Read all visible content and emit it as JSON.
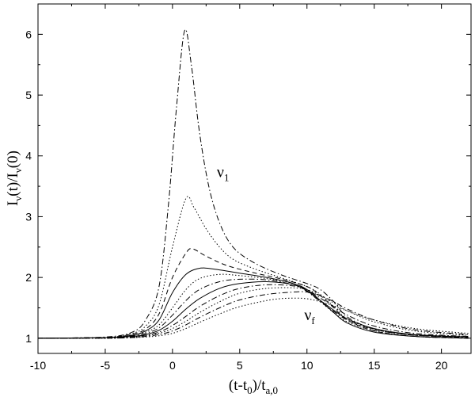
{
  "chart_data": {
    "type": "line",
    "title": "",
    "xlabel": {
      "base": "(t-t",
      "sub1": "0",
      "mid": ")/t",
      "sub2": "a,0"
    },
    "ylabel": {
      "p1": "I",
      "s1": "ν",
      "p2": "(t)/I",
      "s2": "ν",
      "p3": "(0)"
    },
    "xlim": [
      -10,
      22.2
    ],
    "ylim": [
      0.75,
      6.5
    ],
    "xticks": [
      -10,
      -5,
      0,
      5,
      10,
      15,
      20
    ],
    "yticks": [
      1,
      2,
      3,
      4,
      5,
      6
    ],
    "grid": false,
    "legend": "none",
    "annotations": [
      {
        "id": "nu-1",
        "base": "ν",
        "sub": "1",
        "x": 3.3,
        "y": 3.65
      },
      {
        "id": "nu-f",
        "base": "ν",
        "sub": "f",
        "x": 9.8,
        "y": 1.3
      }
    ],
    "series": [
      {
        "style": "dashdot",
        "values": [
          [
            -10,
            1
          ],
          [
            -5,
            1.02
          ],
          [
            -3,
            1.1
          ],
          [
            -2,
            1.3
          ],
          [
            -1,
            1.85
          ],
          [
            -0.3,
            3.2
          ],
          [
            0.3,
            4.8
          ],
          [
            0.9,
            6.06
          ],
          [
            1.4,
            5.5
          ],
          [
            2,
            4.4
          ],
          [
            2.7,
            3.5
          ],
          [
            3.5,
            2.9
          ],
          [
            4.5,
            2.5
          ],
          [
            6,
            2.25
          ],
          [
            8,
            2.05
          ],
          [
            10,
            1.9
          ],
          [
            11,
            1.8
          ],
          [
            12,
            1.6
          ],
          [
            13,
            1.35
          ],
          [
            15,
            1.15
          ],
          [
            18,
            1.05
          ],
          [
            22,
            1.02
          ]
        ]
      },
      {
        "style": "dotted",
        "values": [
          [
            -10,
            1
          ],
          [
            -5,
            1.01
          ],
          [
            -3,
            1.08
          ],
          [
            -2,
            1.2
          ],
          [
            -1,
            1.55
          ],
          [
            0,
            2.5
          ],
          [
            1,
            3.3
          ],
          [
            1.6,
            3.15
          ],
          [
            2.5,
            2.8
          ],
          [
            3.5,
            2.5
          ],
          [
            4.5,
            2.3
          ],
          [
            6,
            2.15
          ],
          [
            8,
            2.0
          ],
          [
            10,
            1.85
          ],
          [
            11,
            1.72
          ],
          [
            12,
            1.52
          ],
          [
            13,
            1.32
          ],
          [
            15,
            1.15
          ],
          [
            18,
            1.06
          ],
          [
            22,
            1.03
          ]
        ]
      },
      {
        "style": "dashed",
        "values": [
          [
            -10,
            1
          ],
          [
            -5,
            1.01
          ],
          [
            -3,
            1.07
          ],
          [
            -2,
            1.15
          ],
          [
            -1,
            1.4
          ],
          [
            0,
            2.0
          ],
          [
            1,
            2.4
          ],
          [
            1.5,
            2.47
          ],
          [
            2.5,
            2.35
          ],
          [
            4,
            2.2
          ],
          [
            6,
            2.08
          ],
          [
            8,
            1.98
          ],
          [
            10,
            1.85
          ],
          [
            11,
            1.7
          ],
          [
            12,
            1.5
          ],
          [
            13,
            1.3
          ],
          [
            15,
            1.12
          ],
          [
            18,
            1.03
          ],
          [
            22,
            1.0
          ]
        ]
      },
      {
        "style": "solid",
        "values": [
          [
            -10,
            1
          ],
          [
            -5,
            1.01
          ],
          [
            -3,
            1.05
          ],
          [
            -2,
            1.12
          ],
          [
            -1,
            1.3
          ],
          [
            0,
            1.75
          ],
          [
            1,
            2.05
          ],
          [
            2,
            2.15
          ],
          [
            3,
            2.14
          ],
          [
            5,
            2.07
          ],
          [
            7,
            2.0
          ],
          [
            9,
            1.9
          ],
          [
            10,
            1.8
          ],
          [
            11,
            1.62
          ],
          [
            12,
            1.42
          ],
          [
            13,
            1.25
          ],
          [
            15,
            1.1
          ],
          [
            18,
            1.03
          ],
          [
            22,
            1.0
          ]
        ]
      },
      {
        "style": "dotted",
        "values": [
          [
            -10,
            1
          ],
          [
            -5,
            1.01
          ],
          [
            -3,
            1.05
          ],
          [
            -2,
            1.1
          ],
          [
            -1,
            1.22
          ],
          [
            0,
            1.5
          ],
          [
            1,
            1.8
          ],
          [
            2,
            1.98
          ],
          [
            3.5,
            2.05
          ],
          [
            5,
            2.03
          ],
          [
            7,
            1.98
          ],
          [
            9,
            1.9
          ],
          [
            10,
            1.78
          ],
          [
            11,
            1.6
          ],
          [
            12,
            1.42
          ],
          [
            13,
            1.27
          ],
          [
            15,
            1.12
          ],
          [
            18,
            1.03
          ],
          [
            22,
            1.0
          ]
        ]
      },
      {
        "style": "dashdot",
        "values": [
          [
            -10,
            1
          ],
          [
            -5,
            1.01
          ],
          [
            -3,
            1.04
          ],
          [
            -2,
            1.08
          ],
          [
            -1,
            1.17
          ],
          [
            0,
            1.38
          ],
          [
            1,
            1.62
          ],
          [
            2,
            1.8
          ],
          [
            3.5,
            1.93
          ],
          [
            5,
            1.97
          ],
          [
            7,
            1.96
          ],
          [
            9,
            1.88
          ],
          [
            10,
            1.77
          ],
          [
            11,
            1.6
          ],
          [
            12,
            1.44
          ],
          [
            13,
            1.3
          ],
          [
            15,
            1.14
          ],
          [
            18,
            1.05
          ],
          [
            22,
            1.01
          ]
        ]
      },
      {
        "style": "solid",
        "values": [
          [
            -10,
            1
          ],
          [
            -5,
            1.01
          ],
          [
            -3,
            1.03
          ],
          [
            -2,
            1.06
          ],
          [
            -1,
            1.13
          ],
          [
            0,
            1.28
          ],
          [
            1,
            1.48
          ],
          [
            2,
            1.65
          ],
          [
            3.5,
            1.82
          ],
          [
            5,
            1.9
          ],
          [
            7,
            1.93
          ],
          [
            9,
            1.88
          ],
          [
            10,
            1.78
          ],
          [
            11,
            1.62
          ],
          [
            12,
            1.46
          ],
          [
            13,
            1.32
          ],
          [
            15,
            1.16
          ],
          [
            18,
            1.06
          ],
          [
            22,
            1.02
          ]
        ]
      },
      {
        "style": "dashdot",
        "values": [
          [
            -10,
            1
          ],
          [
            -5,
            1.01
          ],
          [
            -3,
            1.02
          ],
          [
            -2,
            1.05
          ],
          [
            -1,
            1.1
          ],
          [
            0,
            1.21
          ],
          [
            1,
            1.36
          ],
          [
            2,
            1.52
          ],
          [
            3.5,
            1.7
          ],
          [
            5,
            1.82
          ],
          [
            7,
            1.88
          ],
          [
            9,
            1.86
          ],
          [
            10,
            1.8
          ],
          [
            11,
            1.66
          ],
          [
            12,
            1.52
          ],
          [
            13,
            1.38
          ],
          [
            15,
            1.2
          ],
          [
            18,
            1.08
          ],
          [
            22,
            1.03
          ]
        ]
      },
      {
        "style": "dotted",
        "values": [
          [
            -10,
            1
          ],
          [
            -5,
            1.0
          ],
          [
            -3,
            1.02
          ],
          [
            -2,
            1.04
          ],
          [
            -1,
            1.08
          ],
          [
            0,
            1.16
          ],
          [
            1,
            1.28
          ],
          [
            2,
            1.42
          ],
          [
            3.5,
            1.6
          ],
          [
            5,
            1.74
          ],
          [
            7,
            1.82
          ],
          [
            9,
            1.83
          ],
          [
            10,
            1.8
          ],
          [
            11,
            1.7
          ],
          [
            12,
            1.58
          ],
          [
            13,
            1.45
          ],
          [
            15,
            1.27
          ],
          [
            18,
            1.12
          ],
          [
            22,
            1.05
          ]
        ]
      },
      {
        "style": "dashdot",
        "values": [
          [
            -10,
            1
          ],
          [
            -5,
            1.0
          ],
          [
            -3,
            1.01
          ],
          [
            -2,
            1.03
          ],
          [
            -1,
            1.06
          ],
          [
            0,
            1.12
          ],
          [
            1,
            1.22
          ],
          [
            2,
            1.34
          ],
          [
            3.5,
            1.5
          ],
          [
            5,
            1.63
          ],
          [
            7,
            1.72
          ],
          [
            9,
            1.76
          ],
          [
            10,
            1.76
          ],
          [
            11,
            1.7
          ],
          [
            12,
            1.6
          ],
          [
            13,
            1.48
          ],
          [
            15,
            1.3
          ],
          [
            18,
            1.14
          ],
          [
            22,
            1.06
          ]
        ]
      },
      {
        "style": "dotted",
        "values": [
          [
            -10,
            1
          ],
          [
            -5,
            1.0
          ],
          [
            -3,
            1.01
          ],
          [
            -2,
            1.02
          ],
          [
            -1,
            1.04
          ],
          [
            0,
            1.08
          ],
          [
            1,
            1.16
          ],
          [
            2,
            1.26
          ],
          [
            3.5,
            1.4
          ],
          [
            5,
            1.52
          ],
          [
            7,
            1.62
          ],
          [
            8,
            1.65
          ],
          [
            9,
            1.66
          ],
          [
            10,
            1.65
          ],
          [
            11,
            1.6
          ],
          [
            12,
            1.53
          ],
          [
            13,
            1.45
          ],
          [
            15,
            1.3
          ],
          [
            18,
            1.16
          ],
          [
            22,
            1.08
          ]
        ]
      }
    ]
  }
}
